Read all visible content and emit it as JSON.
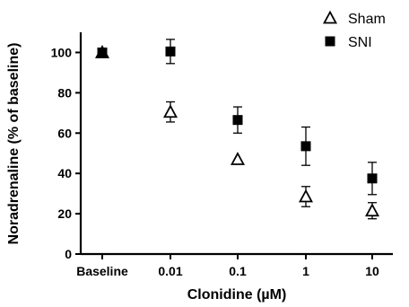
{
  "chart_data": {
    "type": "scatter",
    "categories": [
      "Baseline",
      "0.01",
      "0.1",
      "1",
      "10"
    ],
    "xlabel": "Clonidine (µM)",
    "ylabel": "Noradrenaline (% of baseline)",
    "ylim": [
      0,
      110
    ],
    "yticks": [
      0,
      20,
      40,
      60,
      80,
      100
    ],
    "grid": false,
    "legend_position": "top-right",
    "series": [
      {
        "name": "Sham",
        "marker": "open-triangle",
        "color": "#000000",
        "values": [
          100,
          70.5,
          47,
          28.5,
          21.5
        ],
        "errors": [
          null,
          5,
          null,
          5,
          4
        ]
      },
      {
        "name": "SNI",
        "marker": "filled-square",
        "color": "#000000",
        "values": [
          100,
          100.5,
          66.5,
          53.5,
          37.5
        ],
        "errors": [
          null,
          6,
          6.5,
          9.5,
          8
        ]
      }
    ]
  }
}
